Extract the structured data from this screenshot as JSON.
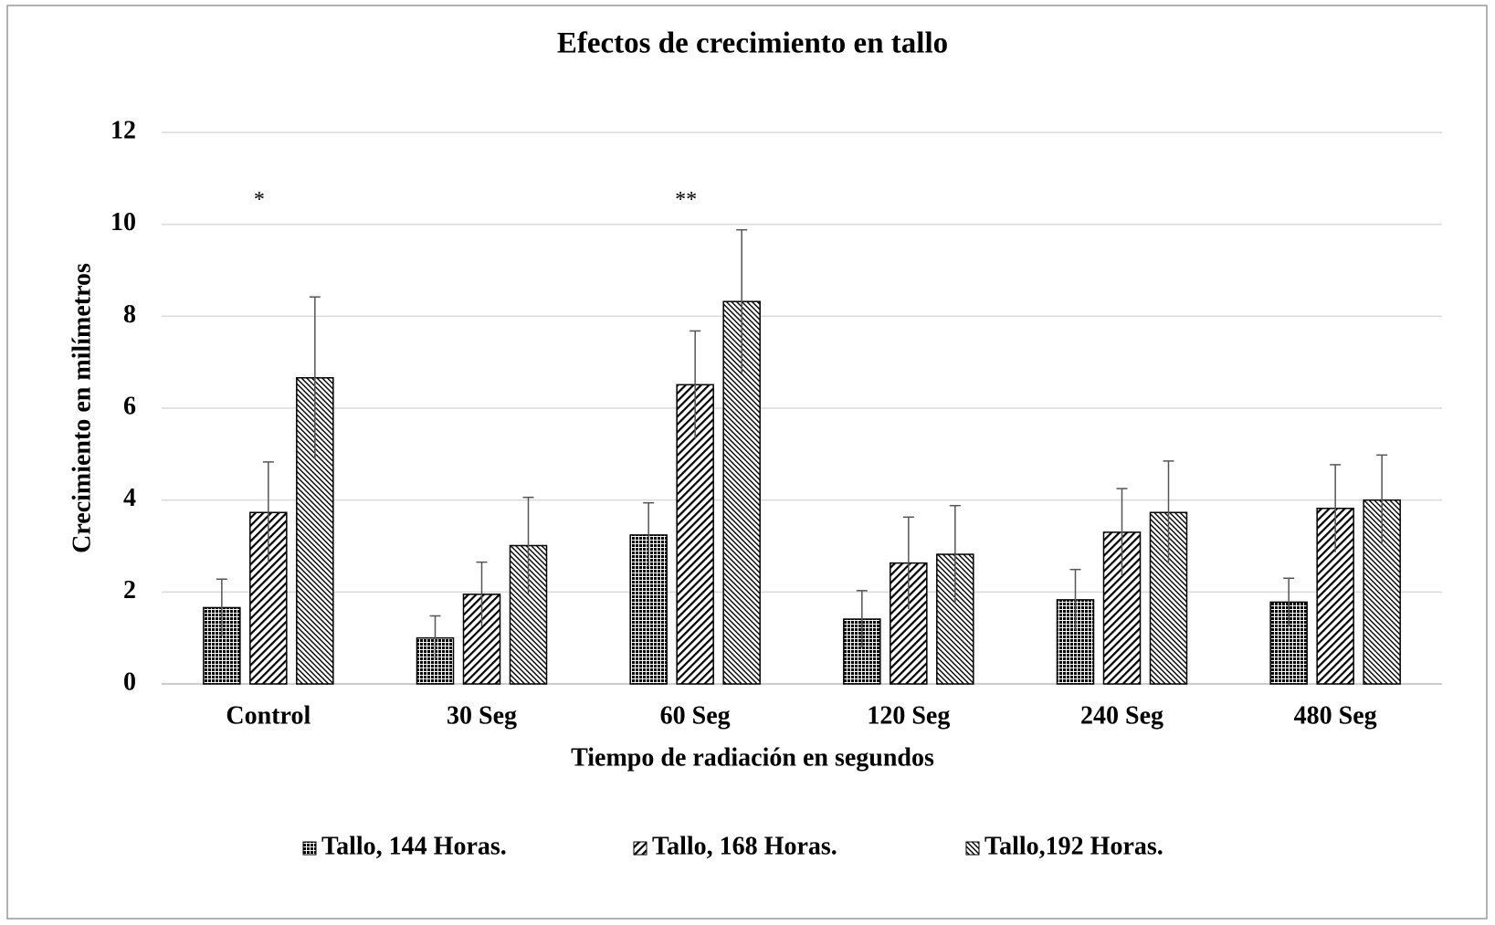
{
  "chart_data": {
    "type": "bar",
    "title": "Efectos de crecimiento en tallo",
    "xlabel": "Tiempo de  radiación  en segundos",
    "ylabel": "Crecimiento en milímetros",
    "categories": [
      "Control",
      "30 Seg",
      "60 Seg",
      "120 Seg",
      "240 Seg",
      "480 Seg"
    ],
    "series": [
      {
        "name": "Tallo, 144 Horas.",
        "color": "#000000",
        "pattern": "dots",
        "values": [
          1.66,
          1.0,
          3.24,
          1.41,
          1.83,
          1.78
        ],
        "errors": [
          0.62,
          0.48,
          0.7,
          0.62,
          0.66,
          0.52
        ]
      },
      {
        "name": "Tallo, 168 Horas.",
        "color": "#000000",
        "pattern": "hatch",
        "values": [
          3.73,
          1.95,
          6.51,
          2.63,
          3.3,
          3.82
        ],
        "errors": [
          1.1,
          0.7,
          1.17,
          1.0,
          0.95,
          0.95
        ]
      },
      {
        "name": "Tallo,192 Horas.",
        "color": "#000000",
        "pattern": "dense",
        "values": [
          6.66,
          3.01,
          8.32,
          2.82,
          3.73,
          4.0
        ],
        "errors": [
          1.76,
          1.05,
          1.56,
          1.06,
          1.12,
          0.98
        ]
      }
    ],
    "annotations": [
      {
        "text": "*",
        "category": 0
      },
      {
        "text": "**",
        "category": 2
      }
    ],
    "ylim": [
      0,
      12
    ],
    "yticks": [
      0,
      2,
      4,
      6,
      8,
      10,
      12
    ],
    "grid": true,
    "legend": "bottom"
  }
}
